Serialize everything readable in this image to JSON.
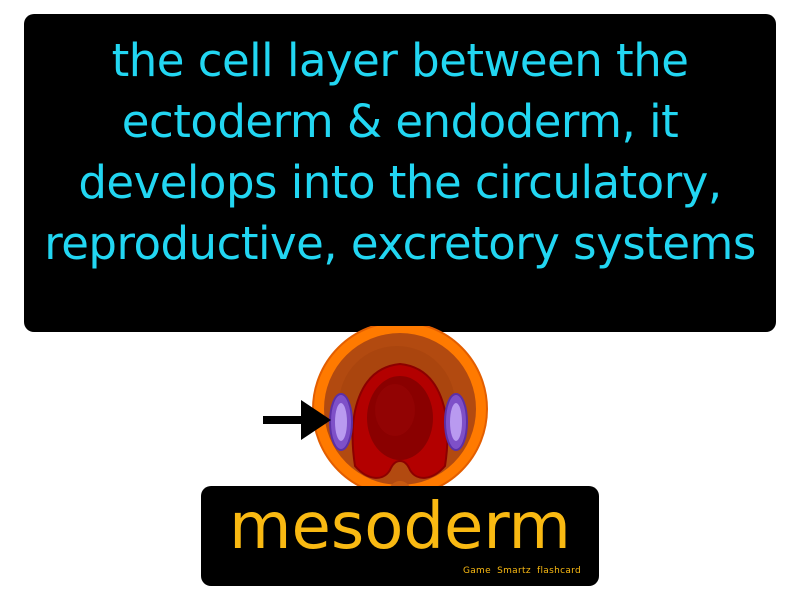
{
  "definition": {
    "text": "the cell layer between the ectoderm & endoderm, it develops into the circulatory, reproductive, excretory systems"
  },
  "term": {
    "text": "mesoderm"
  },
  "credit": {
    "text": "Game Smartz flashcard"
  },
  "illustration": {
    "icon": "embryo-cross-section-icon",
    "pointer": "arrow-right-icon"
  },
  "colors": {
    "definition_text": "#22d6f2",
    "term_text": "#f9b912",
    "box_background": "#000000",
    "outer_layer": "#ff7a00",
    "inner_cavity": "#b24a10",
    "endoderm": "#b30000",
    "mesoderm": "#9b6ee0"
  }
}
